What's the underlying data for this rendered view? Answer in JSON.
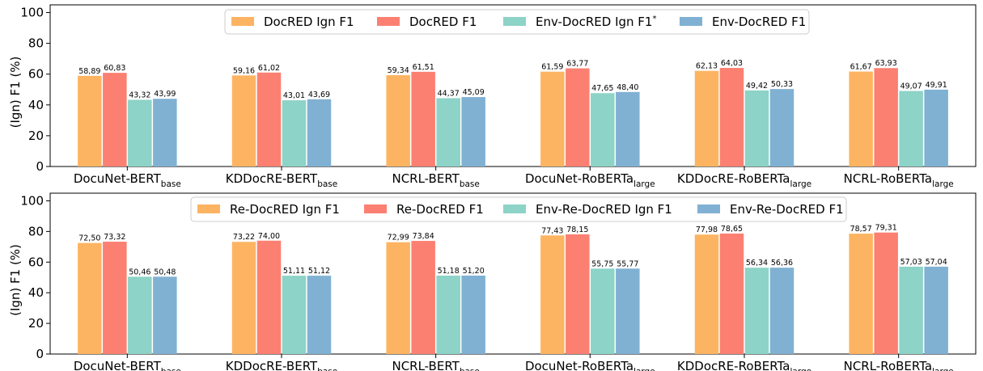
{
  "colors": [
    "#fdb462",
    "#fb8072",
    "#8dd3c7",
    "#80b1d3"
  ],
  "chart_data": [
    {
      "type": "bar",
      "ylabel": "(Ign) F1 (%)",
      "ylim": [
        0,
        105
      ],
      "yticks": [
        0,
        20,
        40,
        60,
        80,
        100
      ],
      "grid": false,
      "legend": "top-center",
      "categories": [
        {
          "base": "DocuNet-BERT",
          "sub": "base"
        },
        {
          "base": "KDDocRE-BERT",
          "sub": "base"
        },
        {
          "base": "NCRL-BERT",
          "sub": "base"
        },
        {
          "base": "DocuNet-RoBERTa",
          "sub": "large"
        },
        {
          "base": "KDDocRE-RoBERTa",
          "sub": "large"
        },
        {
          "base": "NCRL-RoBERTa",
          "sub": "large"
        }
      ],
      "series": [
        {
          "name": "DocRED Ign F1",
          "sup": "",
          "values": [
            58.89,
            59.16,
            59.34,
            61.59,
            62.13,
            61.67
          ],
          "labels": [
            "58,89",
            "59,16",
            "59,34",
            "61,59",
            "62,13",
            "61,67"
          ]
        },
        {
          "name": "DocRED F1",
          "sup": "",
          "values": [
            60.83,
            61.02,
            61.51,
            63.77,
            64.03,
            63.93
          ],
          "labels": [
            "60,83",
            "61,02",
            "61,51",
            "63,77",
            "64,03",
            "63,93"
          ]
        },
        {
          "name": "Env-DocRED Ign F1",
          "sup": "*",
          "values": [
            43.32,
            43.01,
            44.37,
            47.65,
            49.42,
            49.07
          ],
          "labels": [
            "43,32",
            "43,01",
            "44,37",
            "47,65",
            "49,42",
            "49,07"
          ]
        },
        {
          "name": "Env-DocRED F1",
          "sup": "",
          "values": [
            43.99,
            43.69,
            45.09,
            48.4,
            50.33,
            49.91
          ],
          "labels": [
            "43,99",
            "43,69",
            "45,09",
            "48,40",
            "50,33",
            "49,91"
          ]
        }
      ]
    },
    {
      "type": "bar",
      "ylabel": "(Ign) F1 (%)",
      "ylim": [
        0,
        105
      ],
      "yticks": [
        0,
        20,
        40,
        60,
        80,
        100
      ],
      "grid": false,
      "legend": "top-center",
      "categories": [
        {
          "base": "DocuNet-BERT",
          "sub": "base"
        },
        {
          "base": "KDDocRE-BERT",
          "sub": "base"
        },
        {
          "base": "NCRL-BERT",
          "sub": "base"
        },
        {
          "base": "DocuNet-RoBERTa",
          "sub": "large"
        },
        {
          "base": "KDDocRE-RoBERTa",
          "sub": "large"
        },
        {
          "base": "NCRL-RoBERTa",
          "sub": "large"
        }
      ],
      "series": [
        {
          "name": "Re-DocRED Ign F1",
          "sup": "",
          "values": [
            72.5,
            73.22,
            72.99,
            77.43,
            77.98,
            78.57
          ],
          "labels": [
            "72,50",
            "73,22",
            "72,99",
            "77,43",
            "77,98",
            "78,57"
          ]
        },
        {
          "name": "Re-DocRED F1",
          "sup": "",
          "values": [
            73.32,
            74.0,
            73.84,
            78.15,
            78.65,
            79.31
          ],
          "labels": [
            "73,32",
            "74,00",
            "73,84",
            "78,15",
            "78,65",
            "79,31"
          ]
        },
        {
          "name": "Env-Re-DocRED Ign F1",
          "sup": "",
          "values": [
            50.46,
            51.11,
            51.18,
            55.75,
            56.34,
            57.03
          ],
          "labels": [
            "50,46",
            "51,11",
            "51,18",
            "55,75",
            "56,34",
            "57,03"
          ]
        },
        {
          "name": "Env-Re-DocRED F1",
          "sup": "",
          "values": [
            50.48,
            51.12,
            51.2,
            55.77,
            56.36,
            57.04
          ],
          "labels": [
            "50,48",
            "51,12",
            "51,20",
            "55,77",
            "56,36",
            "57,04"
          ]
        }
      ]
    }
  ]
}
